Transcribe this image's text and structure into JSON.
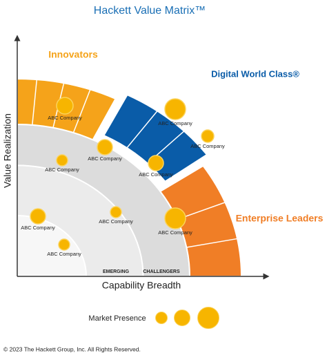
{
  "header": {
    "title": "Hackett Value Matrix™"
  },
  "axes": {
    "y_label": "Value Realization",
    "x_label": "Capability Breadth"
  },
  "segments": {
    "innovators": "Innovators",
    "digital_world_class": "Digital World Class®",
    "enterprise_leaders": "Enterprise Leaders"
  },
  "zones": [
    "EMERGING",
    "CHALLENGERS"
  ],
  "companies": [
    "ABC Company",
    "ABC Company",
    "ABC Company",
    "ABC Company",
    "ABC Company",
    "ABC Company",
    "ABC Company",
    "ABC Company",
    "ABC Company",
    "ABC Company"
  ],
  "legend": {
    "label": "Market Presence"
  },
  "footer": "© 2023 The Hackett Group, Inc. All Rights Reserved."
}
